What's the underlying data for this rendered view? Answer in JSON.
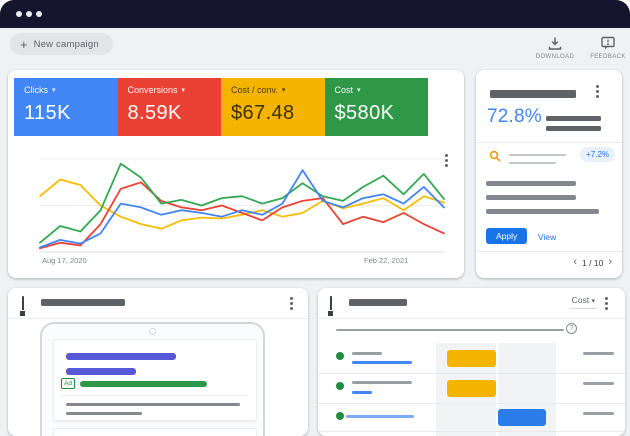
{
  "colors": {
    "titlebar": "#15152e",
    "page_bg": "#eff1f3",
    "blue": "#4285f4",
    "red": "#e94235",
    "yellow": "#f5b400",
    "green": "#2e9748",
    "link_blue": "#1a73e8",
    "badge_bg": "#e8f0fe",
    "dot_green": "#1e8e3e",
    "bar_blue": "#2b7cea",
    "purple": "#5658d8",
    "search_orange": "#f29900"
  },
  "toolbar": {
    "new_campaign": "New campaign",
    "plus": "+",
    "download": "DOWNLOAD",
    "feedback": "FEEDBACK"
  },
  "overview_card": {
    "metrics": [
      {
        "label": "Clicks",
        "value": "115K",
        "bg": "#4285f4",
        "fg": "#ffffff"
      },
      {
        "label": "Conversions",
        "value": "8.59K",
        "bg": "#e94235",
        "fg": "#ffffff"
      },
      {
        "label": "Cost / conv.",
        "value": "$67.48",
        "bg": "#f5b400",
        "fg": "#3d3100"
      },
      {
        "label": "Cost",
        "value": "$580K",
        "bg": "#2e9748",
        "fg": "#ffffff"
      }
    ],
    "caret": "▾",
    "date_start": "Aug 17, 2020",
    "date_end": "Feb 22, 2021"
  },
  "chart_data": {
    "type": "line",
    "x_range": [
      "Aug 17, 2020",
      "Feb 22, 2021"
    ],
    "x_tick_labels": [
      "Aug 17, 2020",
      "Feb 22, 2021"
    ],
    "ylabel": "",
    "ylim": [
      0,
      100
    ],
    "grid": "3 faint horizontal gridlines, no y tick labels",
    "legend": "series colors match the metric cards above",
    "note": "values are relative heights 0-100 estimated from pixels; chart shows no numeric axis",
    "series": [
      {
        "name": "Clicks",
        "color": "#4285f4",
        "values": [
          5,
          13,
          9,
          20,
          52,
          48,
          40,
          45,
          42,
          38,
          45,
          40,
          52,
          88,
          55,
          48,
          58,
          62,
          52,
          70,
          48
        ]
      },
      {
        "name": "Conversions",
        "color": "#ea4335",
        "values": [
          4,
          10,
          7,
          30,
          68,
          75,
          55,
          48,
          45,
          50,
          42,
          34,
          48,
          55,
          58,
          30,
          38,
          32,
          42,
          30,
          20
        ]
      },
      {
        "name": "Cost / conv.",
        "color": "#fbbc04",
        "values": [
          60,
          78,
          72,
          50,
          38,
          30,
          25,
          34,
          37,
          36,
          40,
          45,
          38,
          42,
          55,
          47,
          52,
          58,
          45,
          60,
          53
        ]
      },
      {
        "name": "Cost",
        "color": "#34a853",
        "values": [
          10,
          28,
          22,
          45,
          95,
          80,
          52,
          56,
          50,
          58,
          60,
          52,
          58,
          74,
          60,
          55,
          70,
          82,
          62,
          84,
          57
        ]
      }
    ],
    "draw_order": [
      2,
      1,
      3,
      0
    ]
  },
  "insight_card": {
    "score": "72.8%",
    "delta": "+7.2%",
    "apply": "Apply",
    "view": "View",
    "prev": "‹",
    "page": "1 / 10",
    "next": "›"
  },
  "ad_preview_card": {
    "ad_badge": "Ad"
  },
  "table_card": {
    "metric_dropdown": "Cost",
    "caret": "▾",
    "help": "?",
    "rows": [
      {
        "status": "enabled",
        "bar_color": "#f5b400",
        "bar_side": "left"
      },
      {
        "status": "enabled",
        "bar_color": "#f5b400",
        "bar_side": "left"
      },
      {
        "status": "enabled",
        "bar_color": "#2b7cea",
        "bar_side": "right"
      }
    ]
  }
}
